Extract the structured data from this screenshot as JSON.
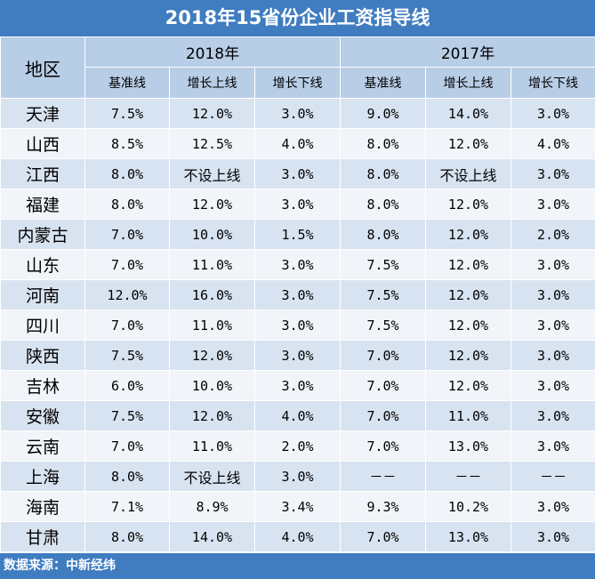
{
  "title": "2018年15省份企业工资指导线",
  "header": {
    "region_label": "地区",
    "years": [
      "2018年",
      "2017年"
    ],
    "sub_columns": [
      "基准线",
      "增长上线",
      "增长下线"
    ]
  },
  "rows": [
    {
      "region": "天津",
      "y2018": [
        "7.5%",
        "12.0%",
        "3.0%"
      ],
      "y2017": [
        "9.0%",
        "14.0%",
        "3.0%"
      ]
    },
    {
      "region": "山西",
      "y2018": [
        "8.5%",
        "12.5%",
        "4.0%"
      ],
      "y2017": [
        "8.0%",
        "12.0%",
        "4.0%"
      ]
    },
    {
      "region": "江西",
      "y2018": [
        "8.0%",
        "不设上线",
        "3.0%"
      ],
      "y2017": [
        "8.0%",
        "不设上线",
        "3.0%"
      ]
    },
    {
      "region": "福建",
      "y2018": [
        "8.0%",
        "12.0%",
        "3.0%"
      ],
      "y2017": [
        "8.0%",
        "12.0%",
        "3.0%"
      ]
    },
    {
      "region": "内蒙古",
      "y2018": [
        "7.0%",
        "10.0%",
        "1.5%"
      ],
      "y2017": [
        "8.0%",
        "12.0%",
        "2.0%"
      ]
    },
    {
      "region": "山东",
      "y2018": [
        "7.0%",
        "11.0%",
        "3.0%"
      ],
      "y2017": [
        "7.5%",
        "12.0%",
        "3.0%"
      ]
    },
    {
      "region": "河南",
      "y2018": [
        "12.0%",
        "16.0%",
        "3.0%"
      ],
      "y2017": [
        "7.5%",
        "12.0%",
        "3.0%"
      ]
    },
    {
      "region": "四川",
      "y2018": [
        "7.0%",
        "11.0%",
        "3.0%"
      ],
      "y2017": [
        "7.5%",
        "12.0%",
        "3.0%"
      ]
    },
    {
      "region": "陕西",
      "y2018": [
        "7.5%",
        "12.0%",
        "3.0%"
      ],
      "y2017": [
        "7.0%",
        "12.0%",
        "3.0%"
      ]
    },
    {
      "region": "吉林",
      "y2018": [
        "6.0%",
        "10.0%",
        "3.0%"
      ],
      "y2017": [
        "7.0%",
        "12.0%",
        "3.0%"
      ]
    },
    {
      "region": "安徽",
      "y2018": [
        "7.5%",
        "12.0%",
        "4.0%"
      ],
      "y2017": [
        "7.0%",
        "11.0%",
        "3.0%"
      ]
    },
    {
      "region": "云南",
      "y2018": [
        "7.0%",
        "11.0%",
        "2.0%"
      ],
      "y2017": [
        "7.0%",
        "13.0%",
        "3.0%"
      ]
    },
    {
      "region": "上海",
      "y2018": [
        "8.0%",
        "不设上线",
        "3.0%"
      ],
      "y2017": [
        "－－",
        "－－",
        "－－"
      ]
    },
    {
      "region": "海南",
      "y2018": [
        "7.1%",
        "8.9%",
        "3.4%"
      ],
      "y2017": [
        "9.3%",
        "10.2%",
        "3.0%"
      ]
    },
    {
      "region": "甘肃",
      "y2018": [
        "8.0%",
        "14.0%",
        "4.0%"
      ],
      "y2017": [
        "7.0%",
        "13.0%",
        "3.0%"
      ]
    }
  ],
  "footer": "数据来源：中新经纬",
  "colors": {
    "title_bg": "#3f7cc0",
    "header_bg": "#b8cde6",
    "row_odd": "#d8e3f1",
    "row_even": "#f1f4f9"
  }
}
